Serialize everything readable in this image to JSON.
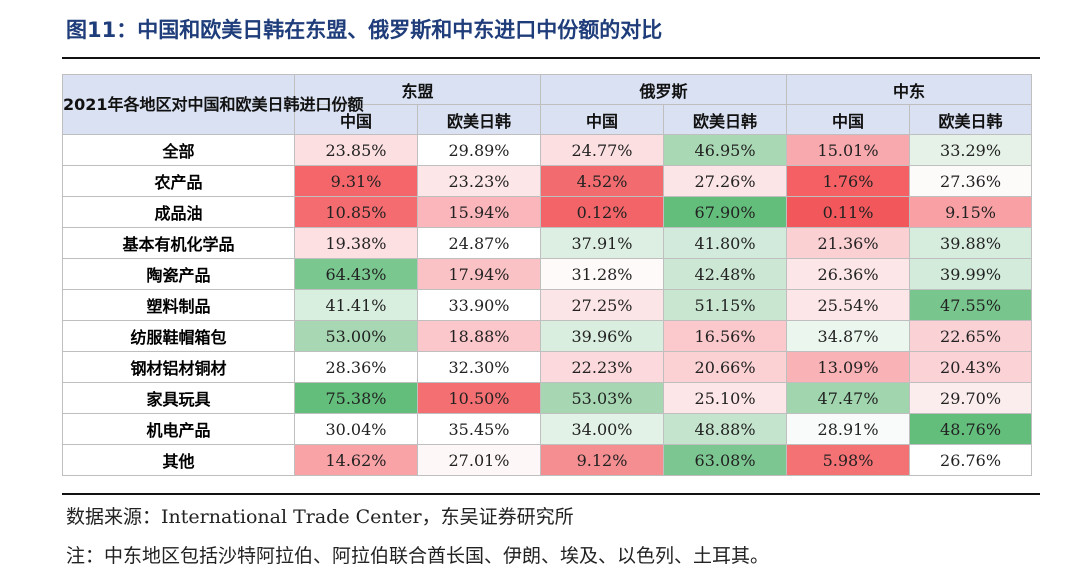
{
  "title": "图11：中国和欧美日韩在东盟、俄罗斯和中东进口中份额的对比",
  "table": {
    "corner_label": "2021年各地区对中国和欧美日韩进口份额",
    "regions": [
      "东盟",
      "俄罗斯",
      "中东"
    ],
    "subheaders": [
      "中国",
      "欧美日韩",
      "中国",
      "欧美日韩",
      "中国",
      "欧美日韩"
    ],
    "rows": [
      {
        "label": "全部",
        "values": [
          "23.85%",
          "29.89%",
          "24.77%",
          "46.95%",
          "15.01%",
          "33.29%"
        ]
      },
      {
        "label": "农产品",
        "values": [
          "9.31%",
          "23.23%",
          "4.52%",
          "27.26%",
          "1.76%",
          "27.36%"
        ]
      },
      {
        "label": "成品油",
        "values": [
          "10.85%",
          "15.94%",
          "0.12%",
          "67.90%",
          "0.11%",
          "9.15%"
        ]
      },
      {
        "label": "基本有机化学品",
        "values": [
          "19.38%",
          "24.87%",
          "37.91%",
          "41.80%",
          "21.36%",
          "39.88%"
        ]
      },
      {
        "label": "陶瓷产品",
        "values": [
          "64.43%",
          "17.94%",
          "31.28%",
          "42.48%",
          "26.36%",
          "39.99%"
        ]
      },
      {
        "label": "塑料制品",
        "values": [
          "41.41%",
          "33.90%",
          "27.25%",
          "51.15%",
          "25.54%",
          "47.55%"
        ]
      },
      {
        "label": "纺服鞋帽箱包",
        "values": [
          "53.00%",
          "18.88%",
          "39.96%",
          "16.56%",
          "34.87%",
          "22.65%"
        ]
      },
      {
        "label": "钢材铝材铜材",
        "values": [
          "28.36%",
          "32.30%",
          "22.23%",
          "20.66%",
          "13.09%",
          "20.43%"
        ]
      },
      {
        "label": "家具玩具",
        "values": [
          "75.38%",
          "10.50%",
          "53.03%",
          "25.10%",
          "47.47%",
          "29.70%"
        ]
      },
      {
        "label": "机电产品",
        "values": [
          "30.04%",
          "35.45%",
          "34.00%",
          "48.88%",
          "28.91%",
          "48.76%"
        ]
      },
      {
        "label": "其他",
        "values": [
          "14.62%",
          "27.01%",
          "9.12%",
          "63.08%",
          "5.98%",
          "26.76%"
        ]
      }
    ],
    "cell_colors": [
      [
        "#fcdfe1",
        "#ffffff",
        "#fcdfe1",
        "#a9d9b4",
        "#f8a9ad",
        "#e6f2e8"
      ],
      [
        "#f4666a",
        "#fce6e8",
        "#f26b6e",
        "#fce5e7",
        "#f46063",
        "#fdfafa"
      ],
      [
        "#f46c6f",
        "#fab6ba",
        "#f26467",
        "#63be7b",
        "#f2585b",
        "#f8a0a4"
      ],
      [
        "#fce0e2",
        "#ffffff",
        "#ddefe2",
        "#d1eadb",
        "#fad0d3",
        "#d6ecdd"
      ],
      [
        "#7ac88f",
        "#fbc2c5",
        "#fefafa",
        "#cce8d4",
        "#fde6e8",
        "#d2ebda"
      ],
      [
        "#d8eedf",
        "#ffffff",
        "#fce5e7",
        "#c8e6d0",
        "#fce6e8",
        "#78c68d"
      ],
      [
        "#a7d8b3",
        "#fcc7cb",
        "#d9eedf",
        "#fbc8cb",
        "#ebf6ee",
        "#fad2d5"
      ],
      [
        "#ffffff",
        "#ffffff",
        "#fcd9dc",
        "#fbd1d4",
        "#f9b2b6",
        "#fbd3d6"
      ],
      [
        "#63be7b",
        "#f46f72",
        "#a6d7b2",
        "#fde6e8",
        "#a1d5ae",
        "#fbeced"
      ],
      [
        "#ffffff",
        "#ffffff",
        "#e3f2e7",
        "#c4e4cd",
        "#f8fbf9",
        "#63be7b"
      ],
      [
        "#f9a3a7",
        "#fef7f7",
        "#f48e91",
        "#7cc791",
        "#f47174",
        "#ffffff"
      ]
    ]
  },
  "source": "数据来源：International Trade Center，东吴证券研究所",
  "note": "注：中东地区包括沙特阿拉伯、阿拉伯联合酋长国、伊朗、埃及、以色列、土耳其。"
}
